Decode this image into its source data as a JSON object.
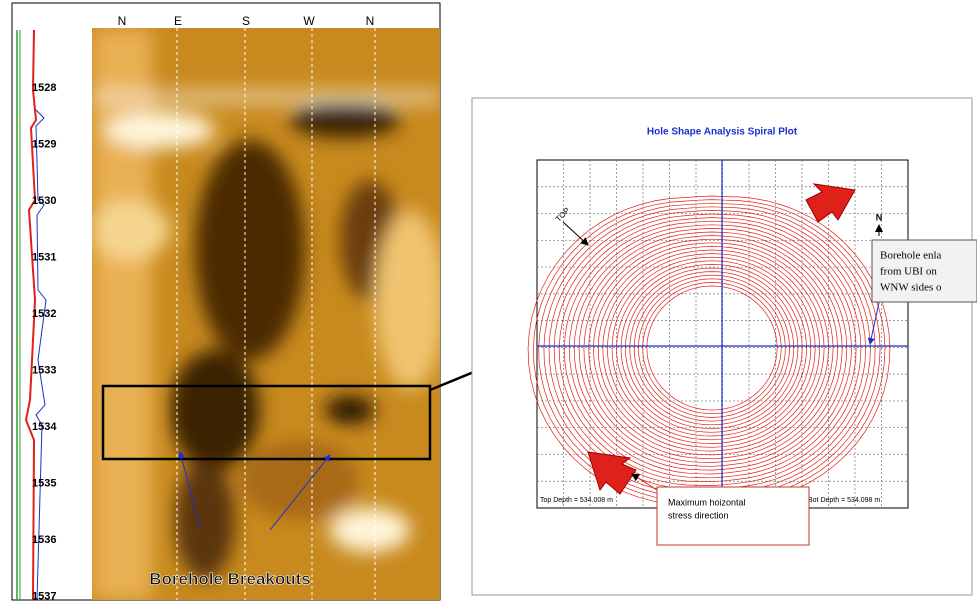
{
  "log_panel": {
    "compass": [
      "N",
      "E",
      "S",
      "W",
      "N"
    ],
    "depths": [
      "1528",
      "1529",
      "1530",
      "1531",
      "1532",
      "1533",
      "1534",
      "1535",
      "1536",
      "1537"
    ],
    "caption": "Borehole Breakouts"
  },
  "spiral_panel": {
    "title": "Hole Shape Analysis Spiral Plot",
    "top_marker": "TOP",
    "north_marker": "N",
    "enlargement_note": [
      "Borehole enla",
      "from UBI on",
      "WNW sides o"
    ],
    "stress_note": [
      "Maximum hoizontal",
      "stress direction"
    ],
    "top_depth": "Top Depth = 534.008 m",
    "bottom_depth": "Bot Depth = 534.098 m"
  }
}
